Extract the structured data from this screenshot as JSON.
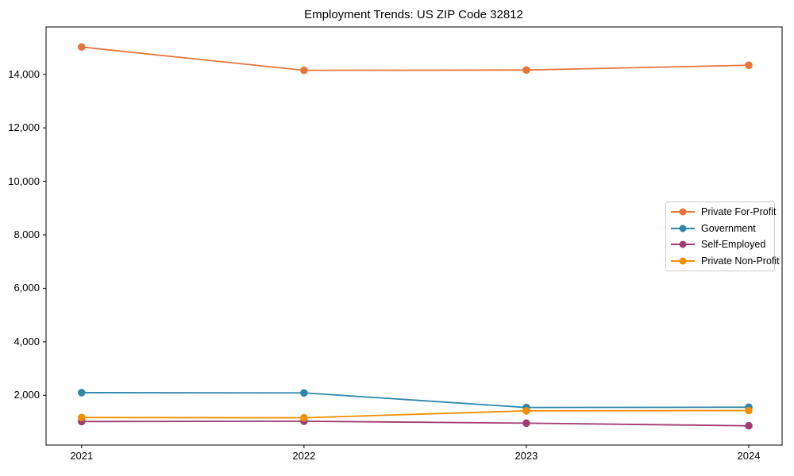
{
  "chart_data": {
    "type": "line",
    "title": "Employment Trends: US ZIP Code 32812",
    "xlabel": "",
    "ylabel": "",
    "x": [
      2021,
      2022,
      2023,
      2024
    ],
    "x_labels": [
      "2021",
      "2022",
      "2023",
      "2024"
    ],
    "series": [
      {
        "name": "Private For-Profit",
        "color": "#E8743B",
        "values": [
          15020,
          14150,
          14160,
          14340
        ]
      },
      {
        "name": "Government",
        "color": "#2E86AB",
        "values": [
          2100,
          2090,
          1545,
          1555
        ]
      },
      {
        "name": "Self-Employed",
        "color": "#A23B72",
        "values": [
          1020,
          1030,
          960,
          860
        ]
      },
      {
        "name": "Private Non-Profit",
        "color": "#F18F01",
        "values": [
          1170,
          1160,
          1420,
          1430
        ]
      }
    ],
    "yticks": [
      2000,
      4000,
      6000,
      8000,
      10000,
      12000,
      14000
    ],
    "ytick_labels": [
      "2,000",
      "4,000",
      "6,000",
      "8,000",
      "10,000",
      "12,000",
      "14,000"
    ],
    "xlim": [
      2020.84,
      2024.15
    ],
    "ylim": [
      140,
      15770
    ],
    "grid": false,
    "legend_position": "center-right",
    "marker": "circle",
    "frame_color": "#000000",
    "background_color": "#ffffff"
  }
}
